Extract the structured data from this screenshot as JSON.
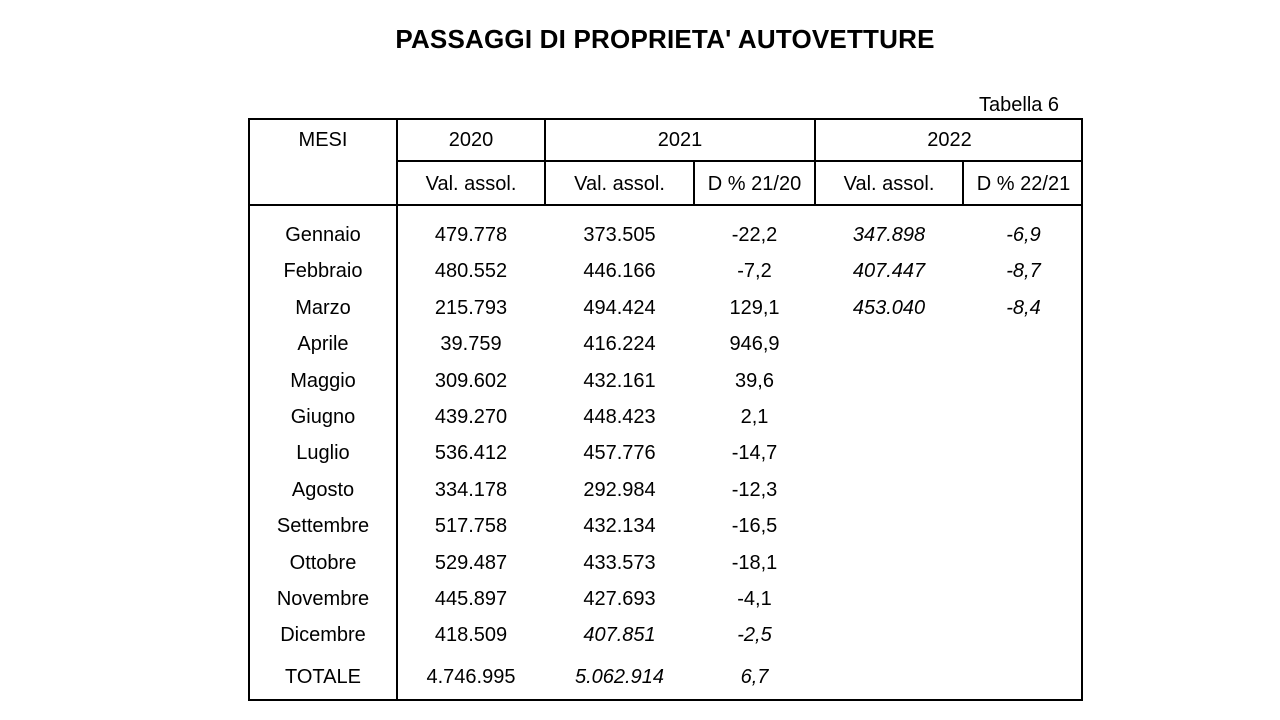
{
  "title": "PASSAGGI DI PROPRIETA' AUTOVETTURE",
  "table_label": "Tabella 6",
  "header": {
    "mesi": "MESI",
    "y2020": "2020",
    "y2021": "2021",
    "y2022": "2022",
    "sub": [
      "Val. assol.",
      "Val. assol.",
      "D % 21/20",
      "Val. assol.",
      "D % 22/21"
    ]
  },
  "rows": [
    {
      "month": "Gennaio",
      "v2020": "479.778",
      "v2021": "373.505",
      "d2120": "-22,2",
      "v2022": "347.898",
      "d2221": "-6,9"
    },
    {
      "month": "Febbraio",
      "v2020": "480.552",
      "v2021": "446.166",
      "d2120": "-7,2",
      "v2022": "407.447",
      "d2221": "-8,7"
    },
    {
      "month": "Marzo",
      "v2020": "215.793",
      "v2021": "494.424",
      "d2120": "129,1",
      "v2022": "453.040",
      "d2221": "-8,4"
    },
    {
      "month": "Aprile",
      "v2020": "39.759",
      "v2021": "416.224",
      "d2120": "946,9",
      "v2022": "",
      "d2221": ""
    },
    {
      "month": "Maggio",
      "v2020": "309.602",
      "v2021": "432.161",
      "d2120": "39,6",
      "v2022": "",
      "d2221": ""
    },
    {
      "month": "Giugno",
      "v2020": "439.270",
      "v2021": "448.423",
      "d2120": "2,1",
      "v2022": "",
      "d2221": ""
    },
    {
      "month": "Luglio",
      "v2020": "536.412",
      "v2021": "457.776",
      "d2120": "-14,7",
      "v2022": "",
      "d2221": ""
    },
    {
      "month": "Agosto",
      "v2020": "334.178",
      "v2021": "292.984",
      "d2120": "-12,3",
      "v2022": "",
      "d2221": ""
    },
    {
      "month": "Settembre",
      "v2020": "517.758",
      "v2021": "432.134",
      "d2120": "-16,5",
      "v2022": "",
      "d2221": ""
    },
    {
      "month": "Ottobre",
      "v2020": "529.487",
      "v2021": "433.573",
      "d2120": "-18,1",
      "v2022": "",
      "d2221": ""
    },
    {
      "month": "Novembre",
      "v2020": "445.897",
      "v2021": "427.693",
      "d2120": "-4,1",
      "v2022": "",
      "d2221": ""
    },
    {
      "month": "Dicembre",
      "v2020": "418.509",
      "v2021": "407.851",
      "d2120": "-2,5",
      "v2022": "",
      "d2221": ""
    }
  ],
  "total": {
    "label": "TOTALE",
    "v2020": "4.746.995",
    "v2021": "5.062.914",
    "d2120": "6,7"
  }
}
